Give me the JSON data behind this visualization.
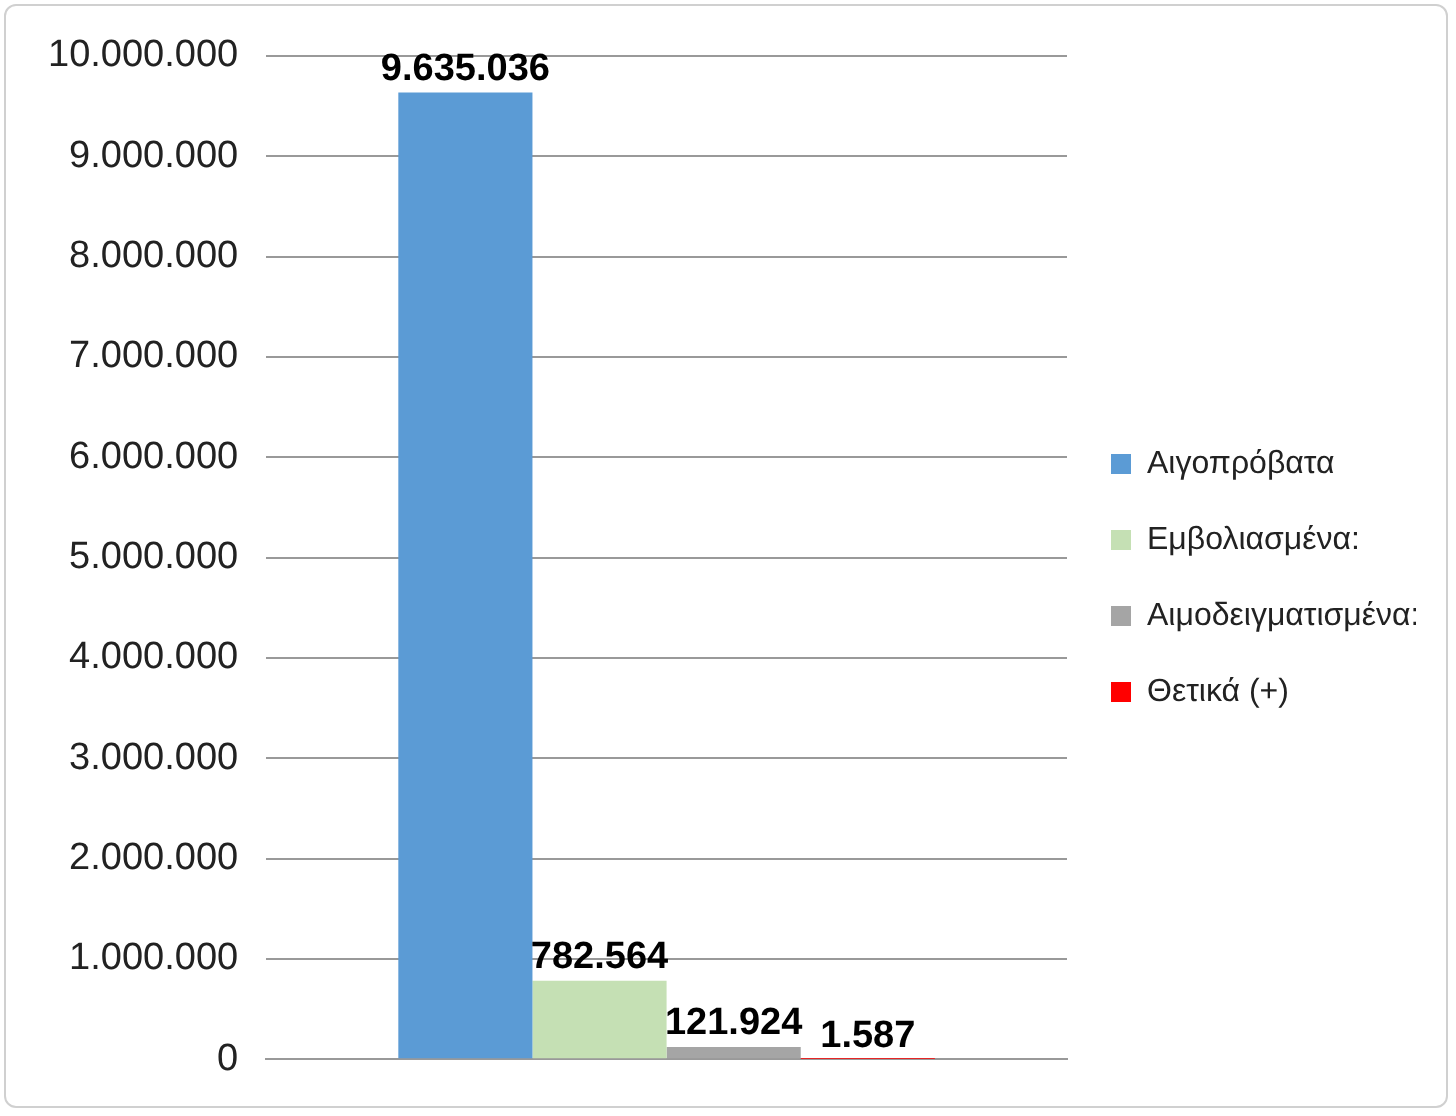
{
  "chart_data": {
    "type": "bar",
    "categories": [
      null
    ],
    "series": [
      {
        "name": "Αιγοπρόβατα",
        "color": "#5b9bd5",
        "values": [
          9635036
        ],
        "value_labels": [
          "9.635.036"
        ]
      },
      {
        "name": "Εμβολιασμένα:",
        "color": "#c5e0b4",
        "values": [
          782564
        ],
        "value_labels": [
          "782.564"
        ]
      },
      {
        "name": "Αιμοδειγματισμένα:",
        "color": "#a5a5a5",
        "values": [
          121924
        ],
        "value_labels": [
          "121.924"
        ]
      },
      {
        "name": "Θετικά (+)",
        "color": "#ff0000",
        "values": [
          1587
        ],
        "value_labels": [
          "1.587"
        ]
      }
    ],
    "ylim": [
      0,
      10000000
    ],
    "yticks": [
      {
        "value": 0,
        "label": "0"
      },
      {
        "value": 1000000,
        "label": "1.000.000"
      },
      {
        "value": 2000000,
        "label": "2.000.000"
      },
      {
        "value": 3000000,
        "label": "3.000.000"
      },
      {
        "value": 4000000,
        "label": "4.000.000"
      },
      {
        "value": 5000000,
        "label": "5.000.000"
      },
      {
        "value": 6000000,
        "label": "6.000.000"
      },
      {
        "value": 7000000,
        "label": "7.000.000"
      },
      {
        "value": 8000000,
        "label": "8.000.000"
      },
      {
        "value": 9000000,
        "label": "9.000.000"
      },
      {
        "value": 10000000,
        "label": "10.000.000"
      }
    ],
    "grid": "y",
    "legend": "right"
  }
}
